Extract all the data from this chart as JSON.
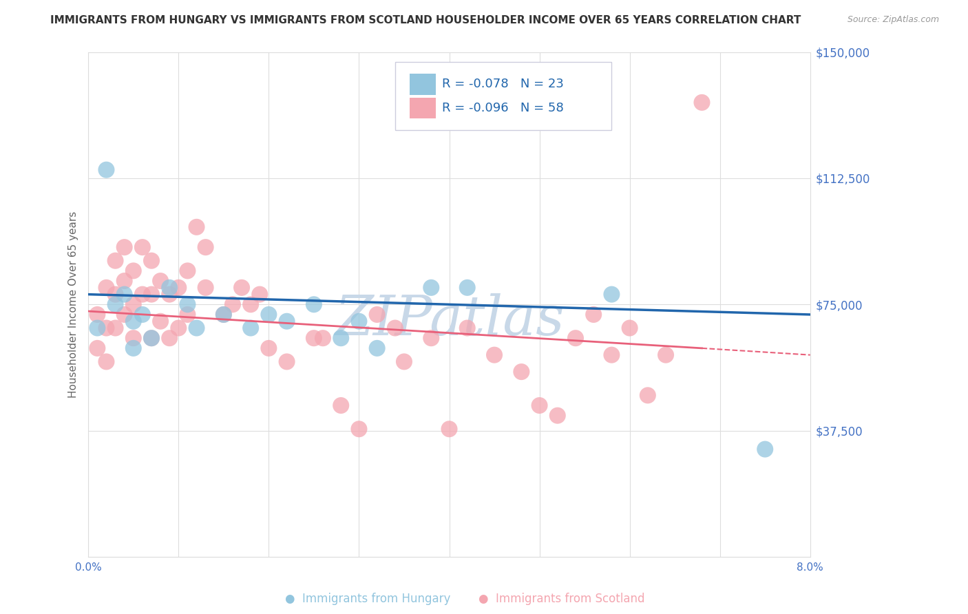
{
  "title": "IMMIGRANTS FROM HUNGARY VS IMMIGRANTS FROM SCOTLAND HOUSEHOLDER INCOME OVER 65 YEARS CORRELATION CHART",
  "source": "Source: ZipAtlas.com",
  "ylabel": "Householder Income Over 65 years",
  "xmin": 0.0,
  "xmax": 0.08,
  "ymin": 0,
  "ymax": 150000,
  "yticks": [
    0,
    37500,
    75000,
    112500,
    150000
  ],
  "ytick_labels": [
    "",
    "$37,500",
    "$75,000",
    "$112,500",
    "$150,000"
  ],
  "xticks": [
    0.0,
    0.01,
    0.02,
    0.03,
    0.04,
    0.05,
    0.06,
    0.07,
    0.08
  ],
  "xtick_labels": [
    "0.0%",
    "",
    "",
    "",
    "",
    "",
    "",
    "",
    "8.0%"
  ],
  "hungary_color": "#92c5de",
  "scotland_color": "#f4a6b0",
  "hungary_line_color": "#2166ac",
  "scotland_line_color": "#e8607a",
  "hungary_R": -0.078,
  "hungary_N": 23,
  "scotland_R": -0.096,
  "scotland_N": 58,
  "hungary_x": [
    0.001,
    0.002,
    0.003,
    0.004,
    0.005,
    0.005,
    0.006,
    0.007,
    0.009,
    0.011,
    0.012,
    0.015,
    0.018,
    0.02,
    0.022,
    0.025,
    0.028,
    0.03,
    0.032,
    0.038,
    0.042,
    0.058,
    0.075
  ],
  "hungary_y": [
    68000,
    115000,
    75000,
    78000,
    70000,
    62000,
    72000,
    65000,
    80000,
    75000,
    68000,
    72000,
    68000,
    72000,
    70000,
    75000,
    65000,
    70000,
    62000,
    80000,
    80000,
    78000,
    32000
  ],
  "scotland_x": [
    0.001,
    0.001,
    0.002,
    0.002,
    0.002,
    0.003,
    0.003,
    0.003,
    0.004,
    0.004,
    0.004,
    0.005,
    0.005,
    0.005,
    0.006,
    0.006,
    0.007,
    0.007,
    0.007,
    0.008,
    0.008,
    0.009,
    0.009,
    0.01,
    0.01,
    0.011,
    0.011,
    0.012,
    0.013,
    0.013,
    0.015,
    0.016,
    0.017,
    0.018,
    0.019,
    0.02,
    0.022,
    0.025,
    0.026,
    0.028,
    0.03,
    0.032,
    0.034,
    0.035,
    0.038,
    0.04,
    0.042,
    0.045,
    0.048,
    0.05,
    0.052,
    0.054,
    0.056,
    0.058,
    0.06,
    0.062,
    0.064,
    0.068
  ],
  "scotland_y": [
    72000,
    62000,
    80000,
    68000,
    58000,
    88000,
    78000,
    68000,
    92000,
    82000,
    72000,
    85000,
    75000,
    65000,
    92000,
    78000,
    88000,
    78000,
    65000,
    82000,
    70000,
    78000,
    65000,
    80000,
    68000,
    85000,
    72000,
    98000,
    92000,
    80000,
    72000,
    75000,
    80000,
    75000,
    78000,
    62000,
    58000,
    65000,
    65000,
    45000,
    38000,
    72000,
    68000,
    58000,
    65000,
    38000,
    68000,
    60000,
    55000,
    45000,
    42000,
    65000,
    72000,
    60000,
    68000,
    48000,
    60000,
    135000
  ],
  "background_color": "#ffffff",
  "grid_color": "#dddddd",
  "axis_label_color": "#4472c4",
  "watermark_color": "#c8d8e8",
  "title_color": "#333333",
  "legend_text_color": "#2166ac",
  "r_value_color": "#e05070"
}
